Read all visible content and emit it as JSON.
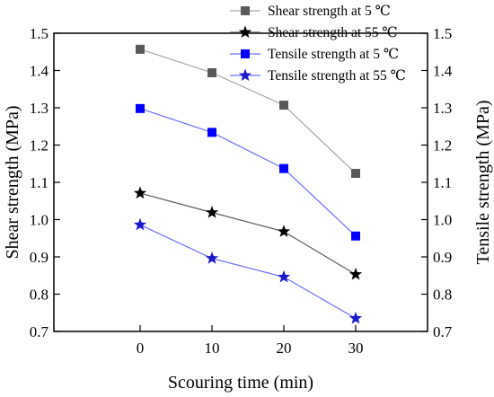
{
  "chart_data": {
    "type": "line",
    "x": [
      0,
      10,
      20,
      30
    ],
    "xlabel": "Scouring time (min)",
    "ylabel_left": "Shear strength (MPa)",
    "ylabel_right": "Tensile strength (MPa)",
    "xlim": [
      -12,
      40
    ],
    "ylim": [
      0.7,
      1.5
    ],
    "xticks": [
      "0",
      "10",
      "20",
      "30"
    ],
    "yticks": [
      "0.7",
      "0.8",
      "0.9",
      "1.0",
      "1.1",
      "1.2",
      "1.3",
      "1.4",
      "1.5"
    ],
    "grid": false,
    "legend_position": "top-right",
    "series": [
      {
        "name": "Shear strength at 5 ℃",
        "values": [
          1.457,
          1.394,
          1.307,
          1.124
        ],
        "marker": "square",
        "marker_color": "#595959",
        "line_color": "#a6a6a6",
        "axis": "left"
      },
      {
        "name": "Shear strength at 55 ℃",
        "values": [
          1.071,
          1.019,
          0.968,
          0.853
        ],
        "marker": "star",
        "marker_color": "#000000",
        "line_color": "#595959",
        "axis": "left"
      },
      {
        "name": "Tensile strength at 5 ℃",
        "values": [
          1.298,
          1.234,
          1.137,
          0.956
        ],
        "marker": "square",
        "marker_color": "#0000ff",
        "line_color": "#6b6bff",
        "axis": "right"
      },
      {
        "name": "Tensile strength at 55 ℃",
        "values": [
          0.986,
          0.896,
          0.846,
          0.735
        ],
        "marker": "star",
        "marker_color": "#1a1acc",
        "line_color": "#6b6bff",
        "axis": "right"
      }
    ]
  }
}
